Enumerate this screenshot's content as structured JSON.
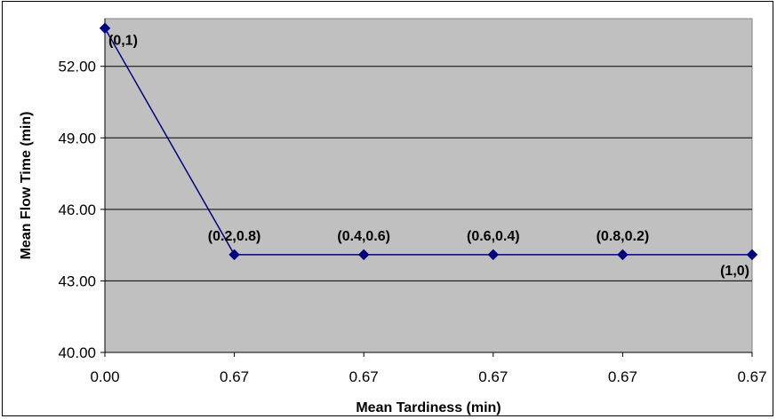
{
  "chart_data": {
    "type": "line",
    "title": "",
    "xlabel": "Mean Tardiness (min)",
    "ylabel": "Mean Flow Time (min)",
    "x_tick_labels": [
      "0.00",
      "0.67",
      "0.67",
      "0.67",
      "0.67",
      "0.67"
    ],
    "y_tick_labels": [
      "40.00",
      "43.00",
      "46.00",
      "49.00",
      "52.00"
    ],
    "ylim": [
      40,
      54
    ],
    "grid": true,
    "colors": {
      "plot_area": "#c0c0c0",
      "series": "#000080",
      "gridline": "#000000"
    },
    "series": [
      {
        "values": [
          53.6,
          44.1,
          44.1,
          44.1,
          44.1,
          44.1
        ],
        "point_labels": [
          "(0,1)",
          "(0.2,0.8)",
          "(0.4,0.6)",
          "(0.6,0.4)",
          "(0.8,0.2)",
          "(1,0)"
        ],
        "marker": "diamond"
      }
    ]
  }
}
